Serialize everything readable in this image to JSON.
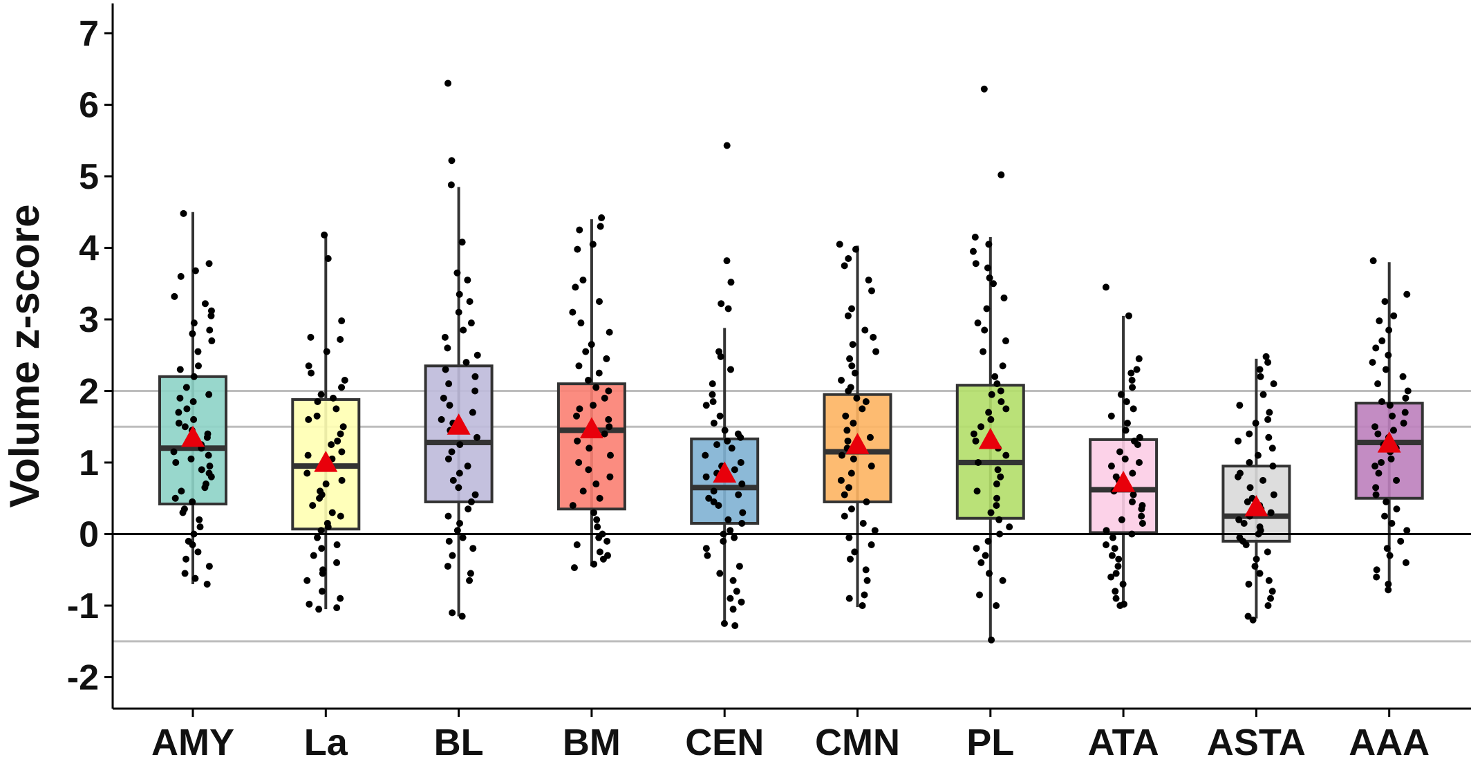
{
  "chart_data": {
    "type": "box",
    "title": "",
    "xlabel": "",
    "ylabel": "Volume z-score",
    "ylim": [
      -2.45,
      7.45
    ],
    "yticks": [
      "-2",
      "-1",
      "0",
      "1",
      "2",
      "3",
      "4",
      "5",
      "6",
      "7"
    ],
    "reference_lines": [
      {
        "y": 0,
        "style": "solid",
        "color": "#000000"
      },
      {
        "y": 2,
        "style": "solid",
        "color": "#bdbdbd"
      },
      {
        "y": 1.5,
        "style": "solid",
        "color": "#bdbdbd"
      },
      {
        "y": -1.5,
        "style": "solid",
        "color": "#bdbdbd"
      }
    ],
    "legend": "none",
    "grid": false,
    "mean_marker": {
      "shape": "triangle",
      "color": "#e8000b"
    },
    "series": [
      {
        "category": "AMY",
        "color": "#8dd3c7",
        "whisker_low": -0.7,
        "q1": 0.42,
        "median": 1.2,
        "q3": 2.2,
        "whisker_high": 4.5,
        "mean": 1.35,
        "points": [
          4.48,
          3.78,
          3.68,
          3.6,
          3.32,
          3.22,
          3.12,
          3.05,
          2.95,
          2.85,
          2.8,
          2.7,
          2.55,
          2.35,
          2.3,
          2.2,
          2.05,
          1.95,
          1.9,
          1.85,
          1.75,
          1.7,
          1.6,
          1.55,
          1.5,
          1.45,
          1.4,
          1.35,
          1.3,
          1.25,
          1.2,
          1.15,
          1.1,
          1.05,
          1.0,
          0.95,
          0.9,
          0.85,
          0.8,
          0.7,
          0.65,
          0.6,
          0.5,
          0.45,
          0.35,
          0.3,
          0.2,
          0.1,
          0.0,
          -0.1,
          -0.15,
          -0.25,
          -0.35,
          -0.45,
          -0.55,
          -0.62,
          -0.7
        ]
      },
      {
        "category": "La",
        "color": "#ffffb3",
        "whisker_low": -1.05,
        "q1": 0.07,
        "median": 0.95,
        "q3": 1.88,
        "whisker_high": 4.18,
        "mean": 1.0,
        "points": [
          4.18,
          3.85,
          2.98,
          2.75,
          2.72,
          2.55,
          2.35,
          2.25,
          2.15,
          2.05,
          1.95,
          1.9,
          1.85,
          1.75,
          1.65,
          1.6,
          1.5,
          1.4,
          1.3,
          1.25,
          1.15,
          1.1,
          1.05,
          0.95,
          0.85,
          0.75,
          0.7,
          0.6,
          0.55,
          0.5,
          0.4,
          0.3,
          0.25,
          0.15,
          0.1,
          0.05,
          -0.05,
          -0.15,
          -0.2,
          -0.3,
          -0.4,
          -0.5,
          -0.55,
          -0.65,
          -0.8,
          -0.9,
          -0.98,
          -1.03,
          -1.05
        ]
      },
      {
        "category": "BL",
        "color": "#bebada",
        "whisker_low": -1.15,
        "q1": 0.45,
        "median": 1.28,
        "q3": 2.35,
        "whisker_high": 4.85,
        "mean": 1.52,
        "points": [
          6.3,
          5.22,
          4.88,
          4.08,
          3.65,
          3.55,
          3.35,
          3.25,
          3.1,
          2.95,
          2.85,
          2.75,
          2.6,
          2.5,
          2.4,
          2.3,
          2.2,
          2.1,
          2.0,
          1.9,
          1.8,
          1.7,
          1.6,
          1.55,
          1.45,
          1.35,
          1.25,
          1.15,
          1.05,
          0.95,
          0.85,
          0.75,
          0.65,
          0.55,
          0.45,
          0.35,
          0.25,
          0.15,
          0.05,
          -0.05,
          -0.1,
          -0.2,
          -0.3,
          -0.45,
          -0.55,
          -0.65,
          -1.1,
          -1.15
        ]
      },
      {
        "category": "BM",
        "color": "#fb8072",
        "whisker_low": -0.45,
        "q1": 0.35,
        "median": 1.45,
        "q3": 2.1,
        "whisker_high": 4.4,
        "mean": 1.47,
        "points": [
          4.42,
          4.3,
          4.25,
          4.05,
          3.98,
          3.55,
          3.45,
          3.25,
          3.1,
          2.95,
          2.82,
          2.65,
          2.55,
          2.45,
          2.35,
          2.25,
          2.15,
          2.05,
          2.0,
          1.9,
          1.8,
          1.75,
          1.65,
          1.6,
          1.5,
          1.4,
          1.3,
          1.2,
          1.1,
          1.0,
          0.9,
          0.8,
          0.7,
          0.6,
          0.5,
          0.4,
          0.3,
          0.2,
          0.1,
          0.0,
          -0.05,
          -0.1,
          -0.15,
          -0.25,
          -0.3,
          -0.35,
          -0.42,
          -0.47
        ]
      },
      {
        "category": "CEN",
        "color": "#80b1d3",
        "whisker_low": -1.28,
        "q1": 0.15,
        "median": 0.65,
        "q3": 1.33,
        "whisker_high": 2.88,
        "mean": 0.85,
        "points": [
          5.43,
          3.82,
          3.52,
          3.22,
          3.15,
          2.55,
          2.48,
          2.3,
          2.1,
          1.95,
          1.85,
          1.8,
          1.65,
          1.55,
          1.45,
          1.4,
          1.35,
          1.3,
          1.25,
          1.2,
          1.1,
          1.0,
          0.95,
          0.9,
          0.85,
          0.8,
          0.7,
          0.6,
          0.55,
          0.5,
          0.45,
          0.4,
          0.3,
          0.2,
          0.15,
          0.05,
          0.0,
          -0.05,
          -0.1,
          -0.2,
          -0.3,
          -0.45,
          -0.55,
          -0.65,
          -0.8,
          -0.9,
          -0.95,
          -1.05,
          -1.25,
          -1.28
        ]
      },
      {
        "category": "CMN",
        "color": "#fdb462",
        "whisker_low": -1.02,
        "q1": 0.45,
        "median": 1.15,
        "q3": 1.95,
        "whisker_high": 4.03,
        "mean": 1.25,
        "points": [
          4.05,
          3.98,
          3.85,
          3.75,
          3.55,
          3.4,
          3.15,
          3.05,
          2.85,
          2.75,
          2.65,
          2.55,
          2.45,
          2.35,
          2.25,
          2.15,
          2.05,
          2.0,
          1.9,
          1.85,
          1.75,
          1.65,
          1.55,
          1.45,
          1.35,
          1.3,
          1.2,
          1.1,
          1.05,
          0.95,
          0.85,
          0.75,
          0.65,
          0.55,
          0.45,
          0.35,
          0.25,
          0.15,
          0.05,
          -0.05,
          -0.15,
          -0.25,
          -0.35,
          -0.5,
          -0.65,
          -0.85,
          -0.9,
          -1.0
        ]
      },
      {
        "category": "PL",
        "color": "#b3de69",
        "whisker_low": -1.48,
        "q1": 0.22,
        "median": 1.0,
        "q3": 2.08,
        "whisker_high": 4.15,
        "mean": 1.32,
        "points": [
          6.22,
          5.02,
          4.15,
          4.05,
          3.95,
          3.78,
          3.72,
          3.58,
          3.5,
          3.3,
          3.15,
          2.95,
          2.85,
          2.7,
          2.55,
          2.35,
          2.2,
          2.1,
          2.0,
          1.95,
          1.85,
          1.75,
          1.7,
          1.6,
          1.5,
          1.4,
          1.3,
          1.2,
          1.1,
          1.0,
          0.9,
          0.8,
          0.7,
          0.6,
          0.5,
          0.4,
          0.3,
          0.2,
          0.1,
          0.0,
          -0.1,
          -0.2,
          -0.3,
          -0.4,
          -0.55,
          -0.65,
          -0.85,
          -1.0,
          -1.48
        ]
      },
      {
        "category": "ATA",
        "color": "#fccde5",
        "whisker_low": -1.0,
        "q1": 0.02,
        "median": 0.62,
        "q3": 1.32,
        "whisker_high": 3.05,
        "mean": 0.72,
        "points": [
          3.45,
          3.05,
          2.45,
          2.3,
          2.25,
          2.15,
          2.05,
          1.95,
          1.85,
          1.75,
          1.65,
          1.55,
          1.45,
          1.35,
          1.3,
          1.25,
          1.15,
          1.05,
          1.0,
          0.95,
          0.85,
          0.8,
          0.75,
          0.65,
          0.6,
          0.55,
          0.45,
          0.4,
          0.35,
          0.25,
          0.2,
          0.15,
          0.05,
          0.0,
          -0.05,
          -0.15,
          -0.2,
          -0.3,
          -0.35,
          -0.45,
          -0.55,
          -0.6,
          -0.7,
          -0.8,
          -0.9,
          -0.98,
          -1.0
        ]
      },
      {
        "category": "ASTA",
        "color": "#d9d9d9",
        "whisker_low": -1.18,
        "q1": -0.1,
        "median": 0.25,
        "q3": 0.95,
        "whisker_high": 2.45,
        "mean": 0.38,
        "points": [
          2.48,
          2.4,
          2.3,
          2.2,
          2.1,
          1.95,
          1.8,
          1.7,
          1.6,
          1.55,
          1.4,
          1.35,
          1.3,
          1.2,
          1.1,
          1.0,
          0.95,
          0.85,
          0.8,
          0.75,
          0.65,
          0.55,
          0.5,
          0.45,
          0.4,
          0.35,
          0.3,
          0.25,
          0.2,
          0.15,
          0.1,
          0.05,
          0.0,
          -0.05,
          -0.1,
          -0.15,
          -0.25,
          -0.35,
          -0.45,
          -0.55,
          -0.65,
          -0.7,
          -0.8,
          -0.9,
          -1.0,
          -1.15,
          -1.2
        ]
      },
      {
        "category": "AAA",
        "color": "#bc80bd",
        "whisker_low": -0.78,
        "q1": 0.5,
        "median": 1.28,
        "q3": 1.83,
        "whisker_high": 3.8,
        "mean": 1.27,
        "points": [
          3.82,
          3.35,
          3.25,
          3.05,
          2.98,
          2.85,
          2.7,
          2.6,
          2.5,
          2.4,
          2.3,
          2.2,
          2.1,
          2.0,
          1.9,
          1.85,
          1.8,
          1.7,
          1.65,
          1.55,
          1.5,
          1.45,
          1.4,
          1.35,
          1.25,
          1.2,
          1.15,
          1.05,
          1.0,
          0.95,
          0.85,
          0.75,
          0.65,
          0.55,
          0.45,
          0.35,
          0.25,
          0.15,
          0.05,
          -0.1,
          -0.2,
          -0.3,
          -0.4,
          -0.5,
          -0.6,
          -0.7,
          -0.78
        ]
      }
    ]
  }
}
